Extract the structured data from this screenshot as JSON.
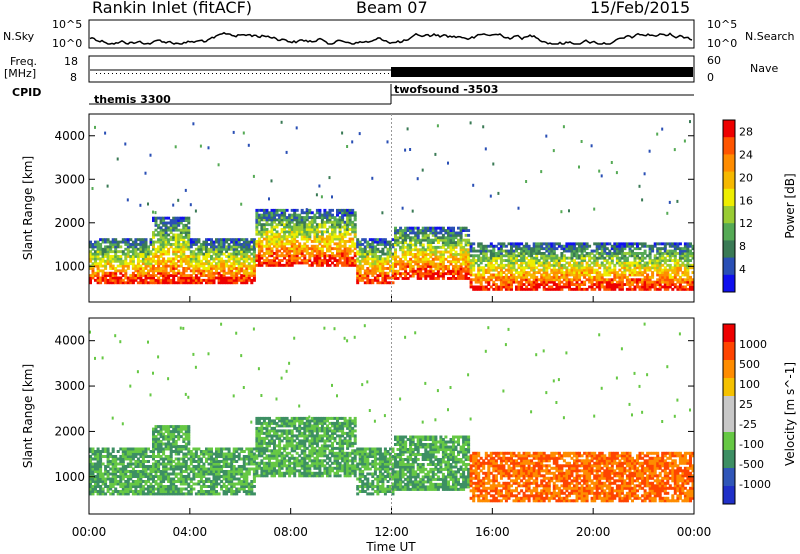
{
  "header": {
    "station": "Rankin Inlet (fitACF)",
    "beam": "Beam 07",
    "date": "15/Feb/2015"
  },
  "strip_labels": {
    "nsky": "N.Sky",
    "nsky_ticks": [
      "10^5",
      "10^0"
    ],
    "nsearch": "N.Search",
    "nsearch_ticks": [
      "10^5",
      "10^0"
    ],
    "freq": "Freq.",
    "freq_unit": "[MHz]",
    "freq_ticks": [
      "18",
      "8"
    ],
    "nave": "Nave",
    "nave_ticks": [
      "60",
      "0"
    ],
    "cpid": "CPID"
  },
  "cpid_segments": [
    {
      "label": "themis 3300"
    },
    {
      "label": "twofsound -3503"
    }
  ],
  "colors": {
    "power_scale": [
      "#1010ee",
      "#2a4fb5",
      "#3a7a55",
      "#55aa55",
      "#99cc33",
      "#eeee00",
      "#f5b800",
      "#ff8c00",
      "#ff5500",
      "#ee0000"
    ],
    "velocity_scale": [
      "#2030c8",
      "#3056b8",
      "#3d8f63",
      "#66c844",
      "#c8c8c8",
      "#c8c8c8",
      "#f5c100",
      "#ff8c00",
      "#ff4400",
      "#ee0000"
    ]
  },
  "chart_data": [
    {
      "type": "heatmap",
      "title": "Power",
      "ylabel": "Slant Range [km]",
      "xlabel": "Time UT",
      "xticks": [
        "00:00",
        "04:00",
        "08:00",
        "12:00",
        "16:00",
        "20:00",
        "00:00"
      ],
      "yticks": [
        "1000",
        "2000",
        "3000",
        "4000"
      ],
      "ylim": [
        180,
        4500
      ],
      "colorbar_label": "Power [dB]",
      "colorbar_ticks": [
        "4",
        "8",
        "12",
        "16",
        "20",
        "24",
        "28"
      ],
      "zlim": [
        0,
        30
      ]
    },
    {
      "type": "heatmap",
      "title": "Velocity",
      "ylabel": "Slant Range [km]",
      "xlabel": "Time UT",
      "xticks": [
        "00:00",
        "04:00",
        "08:00",
        "12:00",
        "16:00",
        "20:00",
        "00:00"
      ],
      "yticks": [
        "1000",
        "2000",
        "3000",
        "4000"
      ],
      "ylim": [
        180,
        4500
      ],
      "colorbar_label": "Velocity [m s^-1]",
      "colorbar_ticks": [
        "1000",
        "500",
        "100",
        "25",
        "-25",
        "-100",
        "-500",
        "-1000"
      ]
    }
  ]
}
